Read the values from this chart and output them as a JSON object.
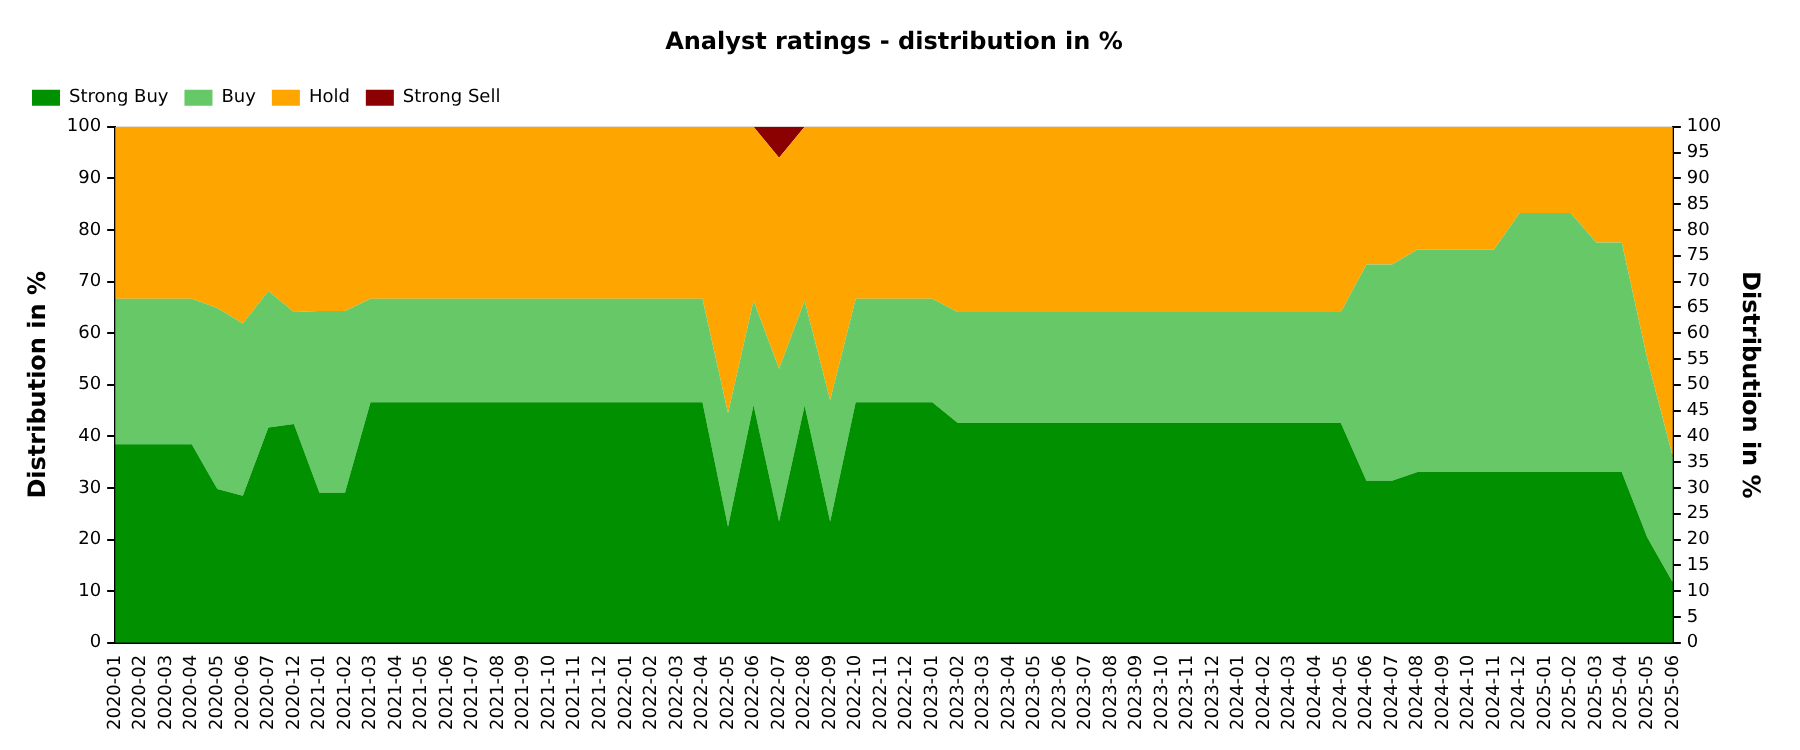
{
  "chart_data": {
    "type": "area",
    "title": "Analyst ratings - distribution in %",
    "ylabel": "Distribution in %",
    "y2label": "Distribution in %",
    "categories": [
      "2020-01",
      "2020-02",
      "2020-03",
      "2020-04",
      "2020-05",
      "2020-06",
      "2020-07",
      "2020-12",
      "2021-01",
      "2021-02",
      "2021-03",
      "2021-04",
      "2021-05",
      "2021-06",
      "2021-07",
      "2021-08",
      "2021-09",
      "2021-10",
      "2021-11",
      "2021-12",
      "2022-01",
      "2022-02",
      "2022-03",
      "2022-04",
      "2022-05",
      "2022-06",
      "2022-07",
      "2022-08",
      "2022-09",
      "2022-10",
      "2022-11",
      "2022-12",
      "2023-01",
      "2023-02",
      "2023-03",
      "2023-04",
      "2023-05",
      "2023-06",
      "2023-07",
      "2023-08",
      "2023-09",
      "2023-10",
      "2023-11",
      "2023-12",
      "2024-01",
      "2024-02",
      "2024-03",
      "2024-04",
      "2024-05",
      "2024-06",
      "2024-07",
      "2024-08",
      "2024-09",
      "2024-10",
      "2024-11",
      "2024-12",
      "2025-01",
      "2025-02",
      "2025-03",
      "2025-04",
      "2025-05",
      "2025-06"
    ],
    "series": [
      {
        "name": "Strong Buy",
        "color": "#009000",
        "values": [
          38.5,
          38.5,
          38.5,
          38.5,
          29.8,
          28.5,
          41.7,
          42.4,
          29.1,
          29.1,
          46.6,
          46.6,
          46.6,
          46.6,
          46.6,
          46.6,
          46.6,
          46.6,
          46.6,
          46.6,
          46.6,
          46.6,
          46.6,
          46.6,
          22.5,
          46.1,
          23.5,
          46,
          23.5,
          46.6,
          46.6,
          46.6,
          46.6,
          42.6,
          42.6,
          42.6,
          42.6,
          42.6,
          42.6,
          42.6,
          42.6,
          42.6,
          42.6,
          42.6,
          42.6,
          42.6,
          42.6,
          42.6,
          42.6,
          31.4,
          31.4,
          33.1,
          33.1,
          33.1,
          33.1,
          33.1,
          33.1,
          33.1,
          33.1,
          33.1,
          20.4,
          11.7
        ]
      },
      {
        "name": "Buy",
        "color": "#66c866",
        "values": [
          28.2,
          28.2,
          28.2,
          28.2,
          35.1,
          33.4,
          26.5,
          21.7,
          35.2,
          35.2,
          20.1,
          20.1,
          20.1,
          20.1,
          20.1,
          20.1,
          20.1,
          20.1,
          20.1,
          20.1,
          20.1,
          20.1,
          20.1,
          20.1,
          22,
          20.2,
          29.6,
          20.3,
          23.5,
          20.1,
          20.1,
          20.1,
          20.1,
          21.5,
          21.5,
          21.5,
          21.5,
          21.5,
          21.5,
          21.5,
          21.5,
          21.5,
          21.5,
          21.5,
          21.5,
          21.5,
          21.5,
          21.5,
          21.5,
          41.9,
          41.9,
          43.1,
          43.1,
          43.1,
          43.1,
          50.2,
          50.2,
          50.2,
          44.5,
          44.5,
          34.6,
          24.3
        ]
      },
      {
        "name": "Hold",
        "color": "#ffa500",
        "values": [
          33.3,
          33.3,
          33.3,
          33.3,
          35.1,
          38.1,
          31.8,
          35.9,
          35.7,
          35.7,
          33.3,
          33.3,
          33.3,
          33.3,
          33.3,
          33.3,
          33.3,
          33.3,
          33.3,
          33.3,
          33.3,
          33.3,
          33.3,
          33.3,
          55.5,
          33.7,
          40.9,
          33.7,
          53,
          33.3,
          33.3,
          33.3,
          33.3,
          35.9,
          35.9,
          35.9,
          35.9,
          35.9,
          35.9,
          35.9,
          35.9,
          35.9,
          35.9,
          35.9,
          35.9,
          35.9,
          35.9,
          35.9,
          35.9,
          26.7,
          26.7,
          23.8,
          23.8,
          23.8,
          23.8,
          16.7,
          16.7,
          16.7,
          22.4,
          22.4,
          45,
          64
        ]
      },
      {
        "name": "Strong Sell",
        "color": "#8b0000",
        "values": [
          0,
          0,
          0,
          0,
          0,
          0,
          0,
          0,
          0,
          0,
          0,
          0,
          0,
          0,
          0,
          0,
          0,
          0,
          0,
          0,
          0,
          0,
          0,
          0,
          0,
          0,
          6,
          0,
          0,
          0,
          0,
          0,
          0,
          0,
          0,
          0,
          0,
          0,
          0,
          0,
          0,
          0,
          0,
          0,
          0,
          0,
          0,
          0,
          0,
          0,
          0,
          0,
          0,
          0,
          0,
          0,
          0,
          0,
          0,
          0,
          0,
          0
        ]
      }
    ],
    "stacked": true,
    "ylim": [
      0,
      100
    ],
    "yticks": [
      0,
      10,
      20,
      30,
      40,
      50,
      60,
      70,
      80,
      90,
      100
    ],
    "y2lim": [
      0,
      100
    ],
    "y2ticks": [
      0,
      5,
      10,
      15,
      20,
      25,
      30,
      35,
      40,
      45,
      50,
      55,
      60,
      65,
      70,
      75,
      80,
      85,
      90,
      95,
      100
    ],
    "grid": "y",
    "legend": "top",
    "marker": "none"
  }
}
